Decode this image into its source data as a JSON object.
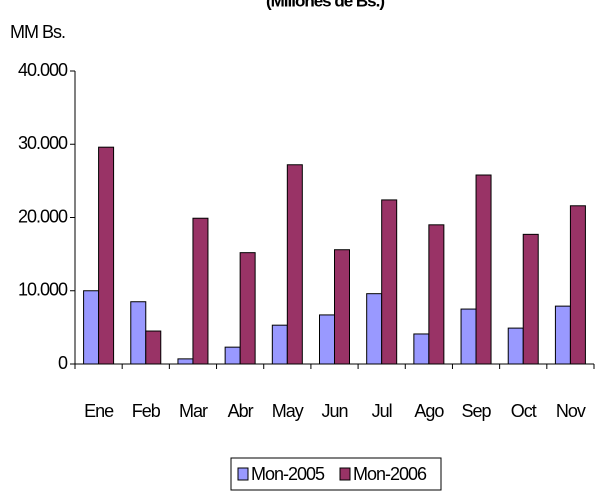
{
  "chart_data": {
    "type": "bar",
    "title": "(Millones de Bs.)",
    "y_label": "MM Bs.",
    "categories": [
      "Ene",
      "Feb",
      "Mar",
      "Abr",
      "May",
      "Jun",
      "Jul",
      "Ago",
      "Sep",
      "Oct",
      "Nov"
    ],
    "series": [
      {
        "name": "Mon-2005",
        "color": "#9999ff",
        "values": [
          10000,
          8500,
          700,
          2300,
          5300,
          6700,
          9600,
          4100,
          7500,
          4900,
          7900
        ]
      },
      {
        "name": "Mon-2006",
        "color": "#993366",
        "values": [
          29600,
          4500,
          19900,
          15200,
          27200,
          15600,
          22400,
          19000,
          25800,
          17700,
          21600
        ]
      }
    ],
    "ylim": [
      0,
      40000
    ],
    "yticks": [
      0,
      {
        "value": 10000,
        "label": "10.000"
      },
      {
        "value": 20000,
        "label": "20.000"
      },
      {
        "value": 30000,
        "label": "30.000"
      },
      {
        "value": 40000,
        "label": "40.000"
      }
    ],
    "legend": "bottom"
  }
}
